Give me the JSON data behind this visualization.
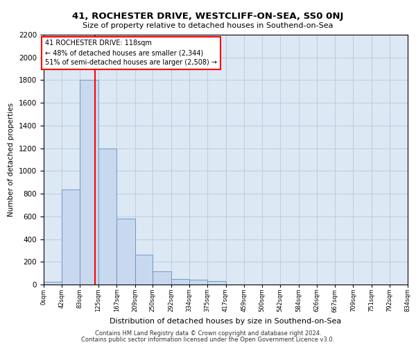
{
  "title1": "41, ROCHESTER DRIVE, WESTCLIFF-ON-SEA, SS0 0NJ",
  "title2": "Size of property relative to detached houses in Southend-on-Sea",
  "xlabel": "Distribution of detached houses by size in Southend-on-Sea",
  "ylabel": "Number of detached properties",
  "bar_edges": [
    0,
    42,
    83,
    125,
    167,
    209,
    250,
    292,
    334,
    375,
    417,
    459,
    500,
    542,
    584,
    626,
    667,
    709,
    751,
    792,
    834
  ],
  "bar_heights": [
    25,
    840,
    1800,
    1200,
    580,
    260,
    115,
    50,
    45,
    30,
    0,
    0,
    0,
    0,
    0,
    0,
    0,
    0,
    0,
    0
  ],
  "bar_color": "#c8d8ee",
  "bar_edge_color": "#6090c0",
  "vline_x": 118,
  "vline_color": "red",
  "annotation_text": "41 ROCHESTER DRIVE: 118sqm\n← 48% of detached houses are smaller (2,344)\n51% of semi-detached houses are larger (2,508) →",
  "annotation_box_color": "white",
  "annotation_box_edge_color": "red",
  "ylim": [
    0,
    2200
  ],
  "yticks": [
    0,
    200,
    400,
    600,
    800,
    1000,
    1200,
    1400,
    1600,
    1800,
    2000,
    2200
  ],
  "grid_color": "#b8c8dc",
  "bg_color": "#dce8f4",
  "footnote1": "Contains HM Land Registry data © Crown copyright and database right 2024.",
  "footnote2": "Contains public sector information licensed under the Open Government Licence v3.0.",
  "tick_labels": [
    "0sqm",
    "42sqm",
    "83sqm",
    "125sqm",
    "167sqm",
    "209sqm",
    "250sqm",
    "292sqm",
    "334sqm",
    "375sqm",
    "417sqm",
    "459sqm",
    "500sqm",
    "542sqm",
    "584sqm",
    "626sqm",
    "667sqm",
    "709sqm",
    "751sqm",
    "792sqm",
    "834sqm"
  ]
}
